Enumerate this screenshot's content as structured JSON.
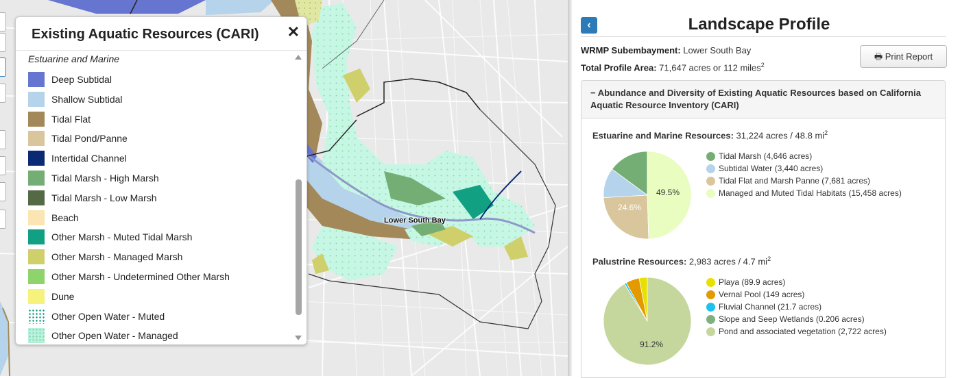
{
  "map": {
    "place_label": "Lower South Bay"
  },
  "legend": {
    "title": "Existing Aquatic Resources (CARI)",
    "close_symbol": "✕",
    "category": "Estuarine and Marine",
    "items": [
      {
        "label": "Deep Subtidal",
        "color": "#6675d0"
      },
      {
        "label": "Shallow Subtidal",
        "color": "#b5d3ea"
      },
      {
        "label": "Tidal Flat",
        "color": "#a3895a"
      },
      {
        "label": "Tidal Pond/Panne",
        "color": "#d9c69c"
      },
      {
        "label": "Intertidal Channel",
        "color": "#0a2a74"
      },
      {
        "label": "Tidal Marsh - High Marsh",
        "color": "#74ae74"
      },
      {
        "label": "Tidal Marsh - Low Marsh",
        "color": "#536a45"
      },
      {
        "label": "Beach",
        "color": "#fbe6b3"
      },
      {
        "label": "Other Marsh - Muted Tidal Marsh",
        "color": "#12a083"
      },
      {
        "label": "Other Marsh - Managed Marsh",
        "color": "#cfcf6c"
      },
      {
        "label": "Other Marsh - Undetermined Other Marsh",
        "color": "#8ed36c"
      },
      {
        "label": "Dune",
        "color": "#f6f37c"
      },
      {
        "label": "Other Open Water - Muted",
        "color": "#b6f2df"
      },
      {
        "label": "Other Open Water - Managed",
        "color": "#b6f2df"
      }
    ]
  },
  "panel": {
    "back_symbol": "‹",
    "title": "Landscape Profile",
    "subembayment_label": "WRMP Subembayment:",
    "subembayment_value": "Lower South Bay",
    "area_label": "Total Profile Area:",
    "area_value": "71,647 acres or 112 miles",
    "area_sup": "2",
    "print_icon": "🖶",
    "print_label": "Print Report",
    "accordion_title": "− Abundance and Diversity of Existing Aquatic Resources based on California Aquatic Resource Inventory (CARI)"
  },
  "chart_data": [
    {
      "type": "pie",
      "title_label": "Estuarine and Marine Resources:",
      "title_value": "31,224 acres / 48.8 mi",
      "title_sup": "2",
      "slices": [
        {
          "legend": "Tidal Marsh (4,646 acres)",
          "value": 4646,
          "color": "#74ae74"
        },
        {
          "legend": "Subtidal Water (3,440 acres)",
          "value": 3440,
          "color": "#b5d3ea"
        },
        {
          "legend": "Tidal Flat and Marsh Panne (7,681 acres)",
          "value": 7681,
          "color": "#d9c69c"
        },
        {
          "legend": "Managed and Muted Tidal Habitats (15,458 acres)",
          "value": 15458,
          "color": "#e8fdbf"
        }
      ],
      "data_labels": [
        "24.6%",
        "49.5%"
      ]
    },
    {
      "type": "pie",
      "title_label": "Palustrine Resources:",
      "title_value": "2,983 acres / 4.7 mi",
      "title_sup": "2",
      "slices": [
        {
          "legend": "Playa (89.9 acres)",
          "value": 89.9,
          "color": "#e8e000"
        },
        {
          "legend": "Vernal Pool (149 acres)",
          "value": 149,
          "color": "#e39a00"
        },
        {
          "legend": "Fluvial Channel (21.7 acres)",
          "value": 21.7,
          "color": "#1ec2ee"
        },
        {
          "legend": "Slope and Seep Wetlands (0.206 acres)",
          "value": 0.206,
          "color": "#7fb07f"
        },
        {
          "legend": "Pond and associated vegetation (2,722 acres)",
          "value": 2722,
          "color": "#c5d79c"
        }
      ],
      "data_labels": [
        "91.2%"
      ]
    }
  ]
}
